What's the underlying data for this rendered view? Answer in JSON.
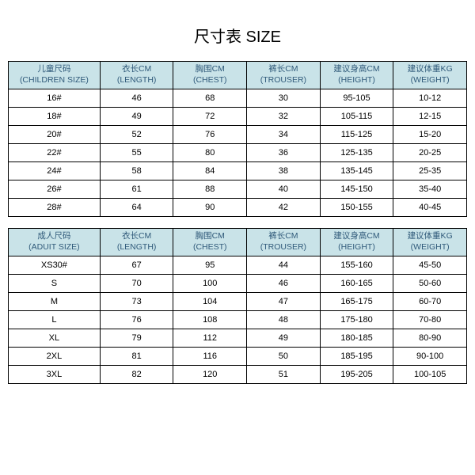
{
  "title": "尺寸表 SIZE",
  "children_table": {
    "header_bg": "#c9e3e8",
    "header_color": "#305a7a",
    "border_color": "#000000",
    "columns": [
      "儿童尺码\n(CHILDREN SIZE)",
      "衣长CM\n(LENGTH)",
      "胸围CM\n(CHEST)",
      "裤长CM\n(TROUSER)",
      "建议身高CM\n(HEIGHT)",
      "建议体重KG\n(WEIGHT)"
    ],
    "rows": [
      [
        "16#",
        "46",
        "68",
        "30",
        "95-105",
        "10-12"
      ],
      [
        "18#",
        "49",
        "72",
        "32",
        "105-115",
        "12-15"
      ],
      [
        "20#",
        "52",
        "76",
        "34",
        "115-125",
        "15-20"
      ],
      [
        "22#",
        "55",
        "80",
        "36",
        "125-135",
        "20-25"
      ],
      [
        "24#",
        "58",
        "84",
        "38",
        "135-145",
        "25-35"
      ],
      [
        "26#",
        "61",
        "88",
        "40",
        "145-150",
        "35-40"
      ],
      [
        "28#",
        "64",
        "90",
        "42",
        "150-155",
        "40-45"
      ]
    ]
  },
  "adult_table": {
    "header_bg": "#c9e3e8",
    "header_color": "#305a7a",
    "border_color": "#000000",
    "columns": [
      "成人尺码\n(ADUIT SIZE)",
      "衣长CM\n(LENGTH)",
      "胸围CM\n(CHEST)",
      "裤长CM\n(TROUSER)",
      "建议身高CM\n(HEIGHT)",
      "建议体重KG\n(WEIGHT)"
    ],
    "rows": [
      [
        "XS30#",
        "67",
        "95",
        "44",
        "155-160",
        "45-50"
      ],
      [
        "S",
        "70",
        "100",
        "46",
        "160-165",
        "50-60"
      ],
      [
        "M",
        "73",
        "104",
        "47",
        "165-175",
        "60-70"
      ],
      [
        "L",
        "76",
        "108",
        "48",
        "175-180",
        "70-80"
      ],
      [
        "XL",
        "79",
        "112",
        "49",
        "180-185",
        "80-90"
      ],
      [
        "2XL",
        "81",
        "116",
        "50",
        "185-195",
        "90-100"
      ],
      [
        "3XL",
        "82",
        "120",
        "51",
        "195-205",
        "100-105"
      ]
    ]
  }
}
